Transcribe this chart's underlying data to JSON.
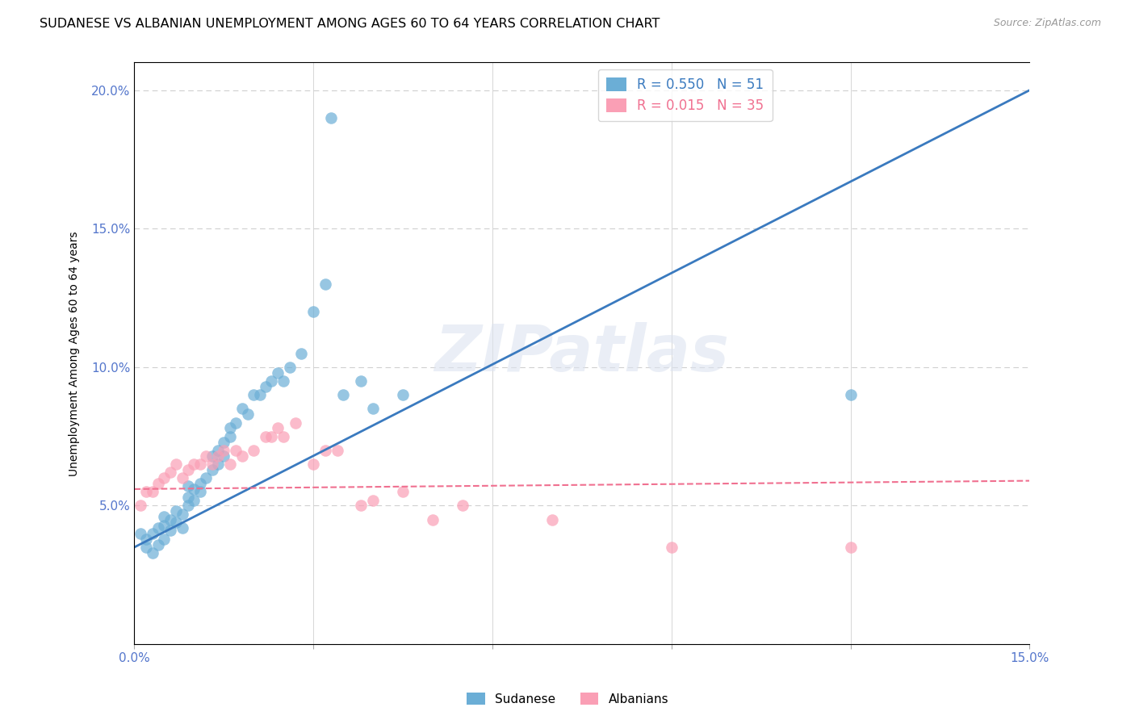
{
  "title": "SUDANESE VS ALBANIAN UNEMPLOYMENT AMONG AGES 60 TO 64 YEARS CORRELATION CHART",
  "source": "Source: ZipAtlas.com",
  "ylabel": "Unemployment Among Ages 60 to 64 years",
  "xlim": [
    0.0,
    0.15
  ],
  "ylim": [
    0.0,
    0.21
  ],
  "xticks": [
    0.0,
    0.03,
    0.06,
    0.09,
    0.12,
    0.15
  ],
  "yticks": [
    0.0,
    0.05,
    0.1,
    0.15,
    0.2
  ],
  "ytick_labels": [
    "",
    "5.0%",
    "10.0%",
    "15.0%",
    "20.0%"
  ],
  "xtick_labels": [
    "0.0%",
    "",
    "",
    "",
    "",
    "15.0%"
  ],
  "sudanese_R": 0.55,
  "sudanese_N": 51,
  "albanian_R": 0.015,
  "albanian_N": 35,
  "sudanese_color": "#6baed6",
  "albanian_color": "#fa9fb5",
  "sudanese_line_color": "#3a7abf",
  "albanian_line_color": "#f07090",
  "background_color": "#ffffff",
  "grid_color": "#d0d0d0",
  "tick_color": "#5577cc",
  "title_fontsize": 11.5,
  "axis_label_fontsize": 10,
  "legend_fontsize": 12,
  "watermark_text": "ZIPatlas",
  "sudanese_line_slope": 1.1,
  "sudanese_line_intercept": 0.035,
  "albanian_line_slope": 0.02,
  "albanian_line_intercept": 0.056,
  "sudanese_x": [
    0.001,
    0.002,
    0.002,
    0.003,
    0.003,
    0.004,
    0.004,
    0.005,
    0.005,
    0.005,
    0.006,
    0.006,
    0.007,
    0.007,
    0.008,
    0.008,
    0.009,
    0.009,
    0.009,
    0.01,
    0.01,
    0.011,
    0.011,
    0.012,
    0.013,
    0.013,
    0.014,
    0.014,
    0.015,
    0.015,
    0.016,
    0.016,
    0.017,
    0.018,
    0.019,
    0.02,
    0.021,
    0.022,
    0.023,
    0.024,
    0.025,
    0.026,
    0.028,
    0.03,
    0.032,
    0.035,
    0.038,
    0.04,
    0.045,
    0.12,
    0.033
  ],
  "sudanese_y": [
    0.04,
    0.035,
    0.038,
    0.033,
    0.04,
    0.042,
    0.036,
    0.038,
    0.043,
    0.046,
    0.041,
    0.045,
    0.044,
    0.048,
    0.042,
    0.047,
    0.05,
    0.053,
    0.057,
    0.052,
    0.056,
    0.055,
    0.058,
    0.06,
    0.063,
    0.068,
    0.065,
    0.07,
    0.068,
    0.073,
    0.075,
    0.078,
    0.08,
    0.085,
    0.083,
    0.09,
    0.09,
    0.093,
    0.095,
    0.098,
    0.095,
    0.1,
    0.105,
    0.12,
    0.13,
    0.09,
    0.095,
    0.085,
    0.09,
    0.09,
    0.19
  ],
  "albanian_x": [
    0.001,
    0.002,
    0.003,
    0.004,
    0.005,
    0.006,
    0.007,
    0.008,
    0.009,
    0.01,
    0.011,
    0.012,
    0.013,
    0.014,
    0.015,
    0.016,
    0.017,
    0.018,
    0.02,
    0.022,
    0.023,
    0.024,
    0.025,
    0.027,
    0.03,
    0.032,
    0.034,
    0.038,
    0.04,
    0.045,
    0.05,
    0.055,
    0.07,
    0.09,
    0.12
  ],
  "albanian_y": [
    0.05,
    0.055,
    0.055,
    0.058,
    0.06,
    0.062,
    0.065,
    0.06,
    0.063,
    0.065,
    0.065,
    0.068,
    0.065,
    0.068,
    0.07,
    0.065,
    0.07,
    0.068,
    0.07,
    0.075,
    0.075,
    0.078,
    0.075,
    0.08,
    0.065,
    0.07,
    0.07,
    0.05,
    0.052,
    0.055,
    0.045,
    0.05,
    0.045,
    0.035,
    0.035
  ]
}
